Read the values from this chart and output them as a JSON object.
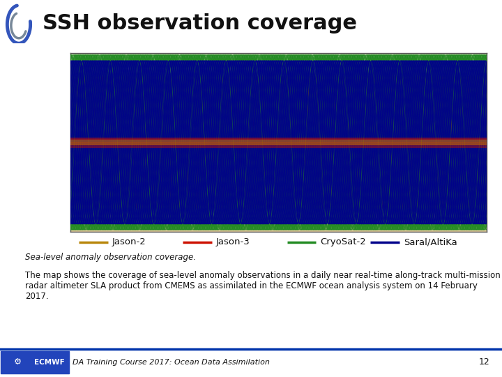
{
  "title": "SSH observation coverage",
  "bg_color": "#ffffff",
  "map_border_color": "#555555",
  "legend_items": [
    {
      "label": "Jason-2",
      "color": "#b8860b"
    },
    {
      "label": "Jason-3",
      "color": "#cc1100"
    },
    {
      "label": "CryoSat-2",
      "color": "#228b22"
    },
    {
      "label": "Saral/AltiKa",
      "color": "#00008b"
    }
  ],
  "caption_italic": "Sea-level anomaly observation coverage.",
  "caption_normal": " The map shows the coverage of sea-level anomaly observations in a daily near real-time along-track multi-mission radar altimeter SLA product from CMEMS as assimilated in the ECMWF ocean analysis system on 14 February 2017.",
  "footer_text": "DA Training Course 2017: Ocean Data Assimilation",
  "footer_page": "12",
  "title_fontsize": 22,
  "jason2_color": "#b8860b",
  "jason3_color": "#cc1100",
  "cryosat2_color": "#228b22",
  "saral_color": "#00008b",
  "land_color": "#dfc89a",
  "ocean_color": "#e8e0d0",
  "track_linewidth": 1.0
}
